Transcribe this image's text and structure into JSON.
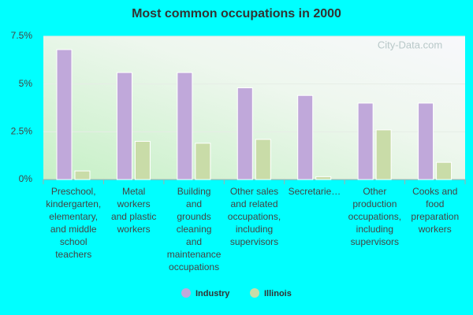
{
  "chart_data": {
    "type": "bar",
    "title": "Most common occupations in 2000",
    "watermark": "City-Data.com",
    "categories": [
      "Preschool,\nkindergarten,\nelementary,\nand middle\nschool\nteachers",
      "Metal\nworkers\nand plastic\nworkers",
      "Building\nand\ngrounds\ncleaning\nand\nmaintenance\noccupations",
      "Other sales\nand related\noccupations,\nincluding\nsupervisors",
      "Secretarie…",
      "Other\nproduction\noccupations,\nincluding\nsupervisors",
      "Cooks and\nfood\npreparation\nworkers"
    ],
    "series": [
      {
        "name": "Industry",
        "color": "#c0a8da",
        "values": [
          6.8,
          5.6,
          5.6,
          4.8,
          4.4,
          4.0,
          4.0
        ]
      },
      {
        "name": "Illinois",
        "color": "#c9dca8",
        "values": [
          0.45,
          2.0,
          1.9,
          2.1,
          0.15,
          2.6,
          0.9
        ]
      }
    ],
    "ylim": [
      0,
      7.5
    ],
    "yticks": [
      {
        "value": 0,
        "label": "0%"
      },
      {
        "value": 2.5,
        "label": "2.5%"
      },
      {
        "value": 5,
        "label": "5%"
      },
      {
        "value": 7.5,
        "label": "7.5%"
      }
    ],
    "grid": true,
    "legend": "bottom"
  }
}
